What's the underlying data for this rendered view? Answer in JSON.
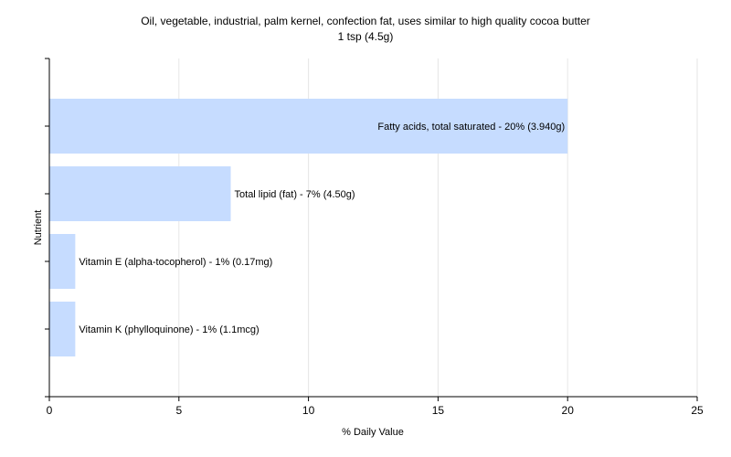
{
  "chart_data": {
    "type": "bar",
    "orientation": "horizontal",
    "title": "Oil, vegetable, industrial, palm kernel, confection fat, uses similar to high quality cocoa butter",
    "subtitle": "1 tsp (4.5g)",
    "xlabel": "% Daily Value",
    "ylabel": "Nutrient",
    "xlim": [
      0,
      25
    ],
    "xticks": [
      0,
      5,
      10,
      15,
      20,
      25
    ],
    "grid": true,
    "bar_color": "#c6dcff",
    "categories": [
      "Fatty acids, total saturated",
      "Total lipid (fat)",
      "Vitamin E (alpha-tocopherol)",
      "Vitamin K (phylloquinone)"
    ],
    "values": [
      20,
      7,
      1,
      1
    ],
    "labels": [
      "Fatty acids, total saturated - 20% (3.940g)",
      "Total lipid (fat) - 7% (4.50g)",
      "Vitamin E (alpha-tocopherol) - 1% (0.17mg)",
      "Vitamin K (phylloquinone) - 1% (1.1mcg)"
    ]
  }
}
